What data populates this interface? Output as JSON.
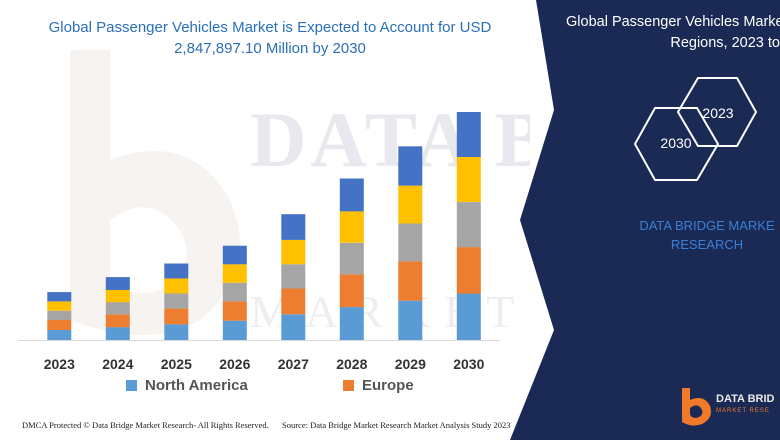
{
  "chart_data": {
    "type": "bar",
    "stacked": true,
    "title": "Global Passenger Vehicles Market is Expected to Account for USD 2,847,897.10 Million by 2030",
    "categories": [
      "2023",
      "2024",
      "2025",
      "2026",
      "2027",
      "2028",
      "2029",
      "2030"
    ],
    "series": [
      {
        "name": "North America",
        "color": "#5b9bd5",
        "values": [
          14,
          18,
          22,
          27,
          36,
          46,
          55,
          65
        ]
      },
      {
        "name": "Europe",
        "color": "#ed7d31",
        "values": [
          14,
          18,
          22,
          27,
          36,
          46,
          55,
          65
        ]
      },
      {
        "color": "#a5a5a5",
        "values": [
          13,
          17,
          21,
          26,
          34,
          44,
          53,
          63
        ]
      },
      {
        "color": "#ffc000",
        "values": [
          13,
          17,
          21,
          26,
          34,
          44,
          53,
          63
        ]
      },
      {
        "color": "#4472c4",
        "values": [
          13,
          18,
          21,
          26,
          36,
          46,
          55,
          63
        ]
      }
    ],
    "y_axis_visible": false,
    "grid": false,
    "legend_position": "bottom"
  },
  "legend": {
    "north_america": "North America",
    "europe": "Europe"
  },
  "footer": {
    "left": "DMCA Protected © Data Bridge Market Research-  All Rights Reserved.",
    "right": "Source: Data Bridge Market Research  Market Analysis Study 2023"
  },
  "watermark": {
    "line1": "DATA BRIDGE",
    "line2": "MARKET RESEARCH"
  },
  "right_panel": {
    "title_line1": "Global Passenger Vehicles Marke",
    "title_line2": "Regions, 2023 to",
    "hex_2023": "2023",
    "hex_2030": "2030",
    "brand_line1": "DATA BRIDGE MARKE",
    "brand_line2": "RESEARCH",
    "logo_text": "DATA BRID",
    "logo_sub": "MARKET RESE",
    "background": "#1b2a55"
  }
}
